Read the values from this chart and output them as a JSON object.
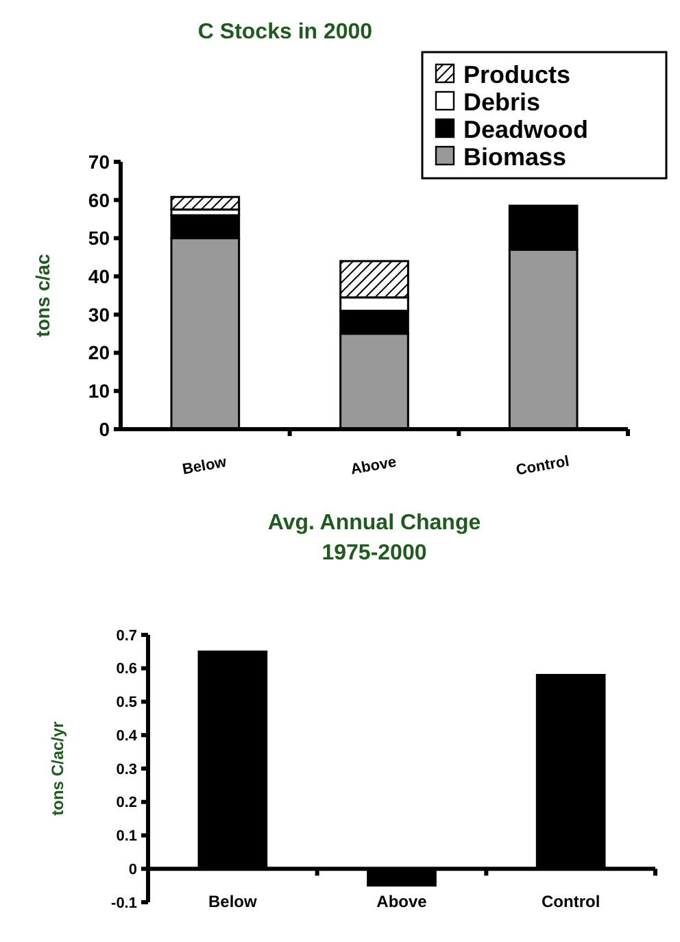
{
  "chart_data": [
    {
      "type": "bar",
      "title": "C Stocks in 2000",
      "ylabel": "tons c/ac",
      "categories": [
        "Below",
        "Above",
        "Control"
      ],
      "stacked": true,
      "legend": "top right",
      "ylim": [
        0,
        70
      ],
      "yticks": [
        0,
        10,
        20,
        30,
        40,
        50,
        60,
        70
      ],
      "series": [
        {
          "name": "Biomass",
          "color": "#999999",
          "values": [
            50,
            25,
            47
          ]
        },
        {
          "name": "Deadwood",
          "color": "#000000",
          "values": [
            6,
            6,
            11.5
          ]
        },
        {
          "name": "Debris",
          "color": "#ffffff",
          "values": [
            1.5,
            3.5,
            null
          ]
        },
        {
          "name": "Products",
          "color": "#000000",
          "values": [
            3.3,
            9.5,
            null
          ]
        }
      ]
    },
    {
      "type": "bar",
      "title": "Avg. Annual Change\n1975-2000",
      "ylabel": "tons C/ac/yr",
      "categories": [
        "Below",
        "Above",
        "Control"
      ],
      "ylim": [
        -0.1,
        0.7
      ],
      "yticks": [
        -0.1,
        0,
        0.1,
        0.2,
        0.3,
        0.4,
        0.5,
        0.6,
        0.7
      ],
      "series": [
        {
          "color": "#000000",
          "values": [
            0.65,
            -0.05,
            0.58
          ]
        }
      ]
    }
  ]
}
